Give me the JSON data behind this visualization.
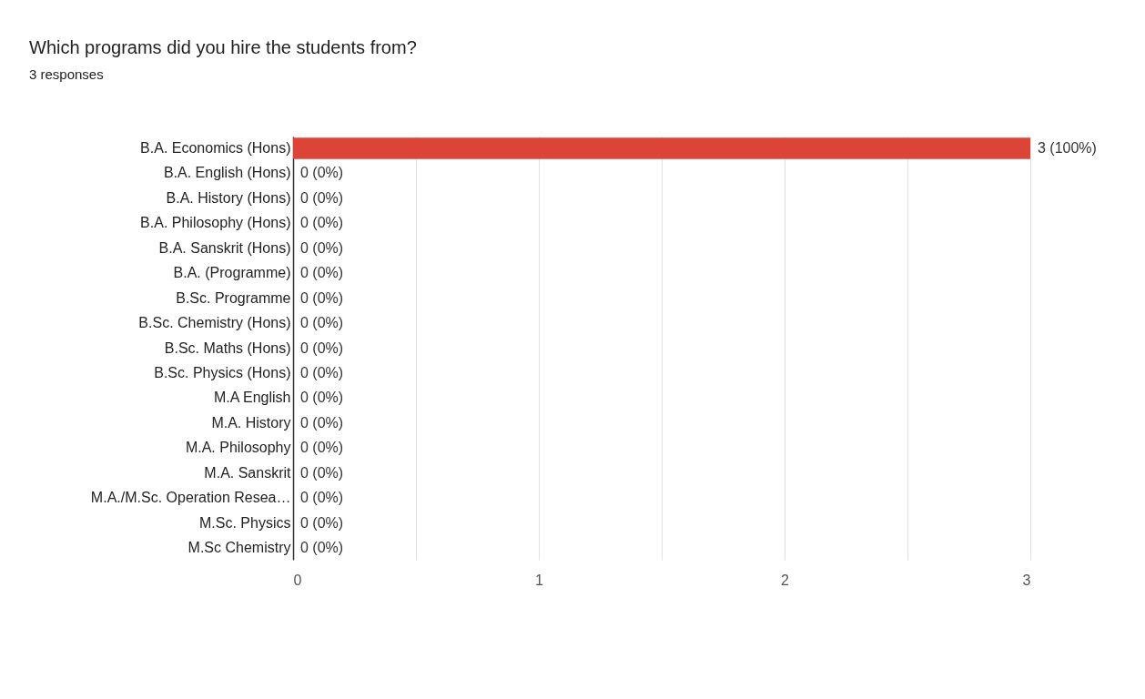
{
  "chart_data": {
    "type": "bar",
    "orientation": "horizontal",
    "title": "Which programs did you hire the students from?",
    "subtitle": "3 responses",
    "categories": [
      "B.A. Economics (Hons)",
      "B.A. English (Hons)",
      "B.A. History (Hons)",
      "B.A. Philosophy (Hons)",
      "B.A. Sanskrit (Hons)",
      "B.A. (Programme)",
      "B.Sc. Programme",
      "B.Sc. Chemistry (Hons)",
      "B.Sc. Maths (Hons)",
      "B.Sc. Physics (Hons)",
      "M.A English",
      "M.A. History",
      "M.A. Philosophy",
      "M.A. Sanskrit",
      "M.A./M.Sc. Operation Resea…",
      "M.Sc. Physics",
      "M.Sc Chemistry"
    ],
    "values": [
      3,
      0,
      0,
      0,
      0,
      0,
      0,
      0,
      0,
      0,
      0,
      0,
      0,
      0,
      0,
      0,
      0
    ],
    "value_labels": [
      "3 (100%)",
      "0 (0%)",
      "0 (0%)",
      "0 (0%)",
      "0 (0%)",
      "0 (0%)",
      "0 (0%)",
      "0 (0%)",
      "0 (0%)",
      "0 (0%)",
      "0 (0%)",
      "0 (0%)",
      "0 (0%)",
      "0 (0%)",
      "0 (0%)",
      "0 (0%)",
      "0 (0%)"
    ],
    "color": "#db4437",
    "xlim": [
      0,
      3
    ],
    "xticks": [
      0,
      {
        "value": 0.5,
        "label": null
      },
      1,
      {
        "value": 1.5,
        "label": null
      },
      2,
      {
        "value": 2.5,
        "label": null
      },
      3
    ],
    "grid": "x"
  }
}
